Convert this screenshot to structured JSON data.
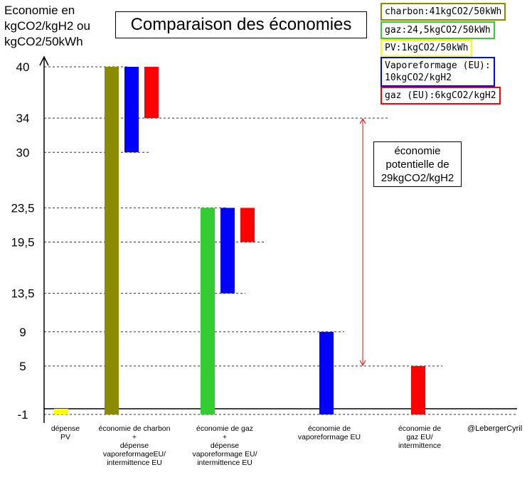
{
  "chart_data": {
    "type": "bar",
    "title": "Comparaison des économies",
    "ylabel": "Economie en\nkgCO2/kgH2 ou\nkgCO2/50kWh",
    "yticks": [
      40,
      34,
      30,
      23.5,
      19.5,
      13.5,
      9,
      5,
      -1
    ],
    "ytick_labels": [
      "40",
      "34",
      "30",
      "23,5",
      "19,5",
      "13,5",
      "9",
      "5",
      "-1"
    ],
    "ylim": [
      -1,
      40
    ],
    "categories": [
      "dépense\nPV",
      "économie de charbon\n+\ndépense\nvaporeformageEU/\nintermittence EU",
      "économie de gaz\n+\ndépense\nvaporeformage EU/\nintermittence EU",
      "économie de\nvaporeformage EU",
      "économie de\ngaz EU/\nintermittence"
    ],
    "bars": [
      {
        "group": 0,
        "series": "PV",
        "bottom": -1,
        "top": 0
      },
      {
        "group": 1,
        "series": "charbon",
        "bottom": -1,
        "top": 40
      },
      {
        "group": 1,
        "series": "Vaporeformage (EU)",
        "bottom": 30,
        "top": 40
      },
      {
        "group": 1,
        "series": "gaz (EU)",
        "bottom": 34,
        "top": 40
      },
      {
        "group": 2,
        "series": "gaz",
        "bottom": -1,
        "top": 23.5
      },
      {
        "group": 2,
        "series": "Vaporeformage (EU)",
        "bottom": 13.5,
        "top": 23.5
      },
      {
        "group": 2,
        "series": "gaz (EU)",
        "bottom": 19.5,
        "top": 23.5
      },
      {
        "group": 3,
        "series": "Vaporeformage (EU)",
        "bottom": -1,
        "top": 9
      },
      {
        "group": 4,
        "series": "gaz (EU)",
        "bottom": -1,
        "top": 5
      }
    ],
    "legend": [
      {
        "series": "charbon",
        "label": "charbon:41kgCO2/50kWh",
        "color": "#8B8B00"
      },
      {
        "series": "gaz",
        "label": "gaz:24,5kgCO2/50kWh",
        "color": "#33CC33"
      },
      {
        "series": "PV",
        "label": "PV:1kgCO2/50kWh",
        "color": "#FFFF00"
      },
      {
        "series": "Vaporeformage (EU)",
        "label": "Vaporeformage (EU):\n10kgCO2/kgH2",
        "color": "#0000FF"
      },
      {
        "series": "gaz (EU)",
        "label": "gaz (EU):6kgCO2/kgH2",
        "color": "#FF0000"
      }
    ],
    "annotation": {
      "text": "économie\npotentielle de\n29kgCO2/kgH2",
      "from": 34,
      "to": 5,
      "color": "#FF0000"
    },
    "credit": "@LebergerCyril"
  }
}
